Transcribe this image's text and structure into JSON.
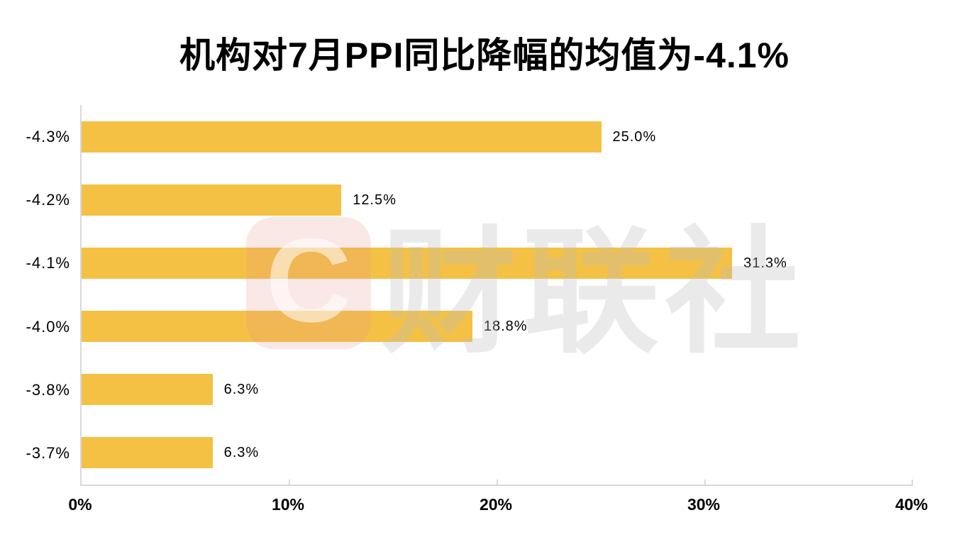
{
  "title": "机构对7月PPI同比降幅的均值为-4.1%",
  "watermark": {
    "logo_letter": "C",
    "text": "财联社",
    "logo_bg_color": "#F7E0DC",
    "text_color": "#ECECEC"
  },
  "colors": {
    "bar": "#F4C145",
    "axis": "#D9D9D9",
    "text": "#000000",
    "background": "#FFFFFF"
  },
  "chart_data": {
    "type": "bar",
    "orientation": "horizontal",
    "title": "机构对7月PPI同比降幅的均值为-4.1%",
    "categories": [
      "-4.3%",
      "-4.2%",
      "-4.1%",
      "-4.0%",
      "-3.8%",
      "-3.7%"
    ],
    "values": [
      25.0,
      12.5,
      31.3,
      18.8,
      6.3,
      6.3
    ],
    "value_labels": [
      "25.0%",
      "12.5%",
      "31.3%",
      "18.8%",
      "6.3%",
      "6.3%"
    ],
    "x_ticks": [
      "0%",
      "10%",
      "20%",
      "30%",
      "40%"
    ],
    "x_tick_values": [
      0,
      10,
      20,
      30,
      40
    ],
    "xlim": [
      0,
      40
    ],
    "xlabel": "",
    "ylabel": "",
    "grid": false,
    "legend": null
  }
}
